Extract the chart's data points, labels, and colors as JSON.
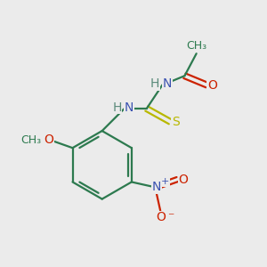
{
  "background_color": "#ebebeb",
  "atom_colors": {
    "C": "#2d7a4f",
    "N": "#3a52b0",
    "O": "#cc2200",
    "S": "#b8b800",
    "H": "#5a8a7a"
  },
  "bond_color": "#2d7a4f",
  "figsize": [
    3.0,
    3.0
  ],
  "dpi": 100,
  "lw": 1.6,
  "fs": 10
}
